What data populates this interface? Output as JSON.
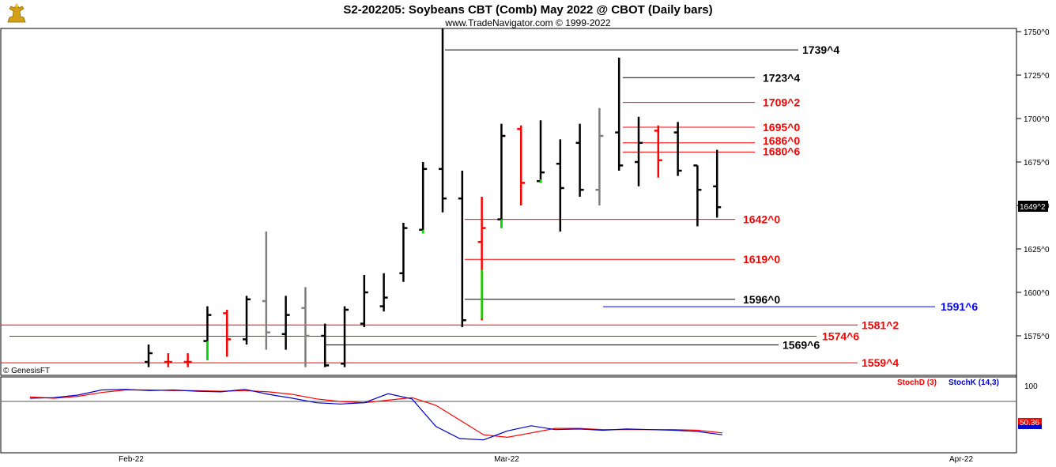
{
  "title": "S2-202205:  Soybeans CBT (Comb) May 2022 @ CBOT  (Daily bars)",
  "subtitle": "www.TradeNavigator.com © 1999-2022",
  "copyright": "© GenesisFT",
  "icon": "gold-trophy-logo-icon",
  "colors": {
    "up": "#000000",
    "down": "#ff0000",
    "neutral": "#808080",
    "stochK": "#0000cc",
    "stochD": "#ff0000",
    "highlight": "#0000ff"
  },
  "price_labels": [
    "1750^0",
    "1725^0",
    "1700^0",
    "1675^0",
    "1650^0",
    "1625^0",
    "1600^0",
    "1575^0"
  ],
  "last_price": "1649^2",
  "date_labels": [
    "Feb-22",
    "Mar-22",
    "Apr-22"
  ],
  "indicator": {
    "d_label": "StochD (3)",
    "k_label": "StochK (14,3)",
    "level_label": "100",
    "value_label": "50.36"
  },
  "chart_data": {
    "type": "ohlc",
    "title": "S2-202205:  Soybeans CBT (Comb) May 2022 @ CBOT  (Daily bars)",
    "ylim": [
      1557,
      1752
    ],
    "levels": [
      {
        "label": "1739^4",
        "value": 1739.5,
        "color": "#000000"
      },
      {
        "label": "1723^4",
        "value": 1723.5,
        "color": "#000000"
      },
      {
        "label": "1709^2",
        "value": 1709.25,
        "color": "#ff0000"
      },
      {
        "label": "1695^0",
        "value": 1695,
        "color": "#ff0000"
      },
      {
        "label": "1686^0",
        "value": 1686,
        "color": "#ff0000"
      },
      {
        "label": "1680^6",
        "value": 1680.75,
        "color": "#ff0000"
      },
      {
        "label": "1642^0",
        "value": 1642,
        "color": "#ff0000"
      },
      {
        "label": "1619^0",
        "value": 1619,
        "color": "#ff0000"
      },
      {
        "label": "1596^0",
        "value": 1596,
        "color": "#000000"
      },
      {
        "label": "1591^6",
        "value": 1591.75,
        "color": "#0000ff"
      },
      {
        "label": "1581^2",
        "value": 1581.25,
        "color": "#ff0000"
      },
      {
        "label": "1574^6",
        "value": 1574.75,
        "color": "#ff0000"
      },
      {
        "label": "1569^6",
        "value": 1569.75,
        "color": "#000000"
      },
      {
        "label": "1559^4",
        "value": 1559.5,
        "color": "#ff0000"
      }
    ],
    "bars": [
      {
        "o": 1560,
        "h": 1570,
        "l": 1557,
        "c": 1565,
        "color": "#000000"
      },
      {
        "o": 1560,
        "h": 1565,
        "l": 1557,
        "c": 1560,
        "color": "#ff0000"
      },
      {
        "o": 1560,
        "h": 1565,
        "l": 1557,
        "c": 1560,
        "color": "#ff0000"
      },
      {
        "o": 1572,
        "h": 1592,
        "l": 1561,
        "c": 1587,
        "color": "#000000"
      },
      {
        "o": 1588,
        "h": 1590,
        "l": 1563,
        "c": 1573,
        "color": "#ff0000"
      },
      {
        "o": 1573,
        "h": 1598,
        "l": 1570,
        "c": 1596,
        "color": "#000000"
      },
      {
        "o": 1595,
        "h": 1635,
        "l": 1567,
        "c": 1577,
        "color": "#808080"
      },
      {
        "o": 1576,
        "h": 1598,
        "l": 1567,
        "c": 1587,
        "color": "#000000"
      },
      {
        "o": 1591,
        "h": 1603,
        "l": 1557,
        "c": 1575,
        "color": "#808080"
      },
      {
        "o": 1575,
        "h": 1582,
        "l": 1557,
        "c": 1558,
        "color": "#000000"
      },
      {
        "o": 1559,
        "h": 1592,
        "l": 1557,
        "c": 1590,
        "color": "#000000"
      },
      {
        "o": 1582,
        "h": 1610,
        "l": 1580,
        "c": 1600,
        "color": "#000000"
      },
      {
        "o": 1592,
        "h": 1611,
        "l": 1589,
        "c": 1597,
        "color": "#000000"
      },
      {
        "o": 1611,
        "h": 1640,
        "l": 1606,
        "c": 1637,
        "color": "#000000"
      },
      {
        "o": 1636,
        "h": 1675,
        "l": 1634,
        "c": 1671,
        "color": "#000000"
      },
      {
        "o": 1671,
        "h": 1752,
        "l": 1646,
        "c": 1654,
        "color": "#000000"
      },
      {
        "o": 1654,
        "h": 1670,
        "l": 1580,
        "c": 1584,
        "color": "#000000"
      },
      {
        "o": 1629,
        "h": 1655,
        "l": 1584,
        "c": 1637,
        "color": "#ff0000"
      },
      {
        "o": 1642,
        "h": 1697,
        "l": 1637,
        "c": 1690,
        "color": "#000000"
      },
      {
        "o": 1694,
        "h": 1696,
        "l": 1650,
        "c": 1663,
        "color": "#ff0000"
      },
      {
        "o": 1664,
        "h": 1699,
        "l": 1663,
        "c": 1669,
        "color": "#000000"
      },
      {
        "o": 1674,
        "h": 1688,
        "l": 1635,
        "c": 1660,
        "color": "#000000"
      },
      {
        "o": 1686,
        "h": 1697,
        "l": 1655,
        "c": 1659,
        "color": "#000000"
      },
      {
        "o": 1659,
        "h": 1706,
        "l": 1650,
        "c": 1690,
        "color": "#808080"
      },
      {
        "o": 1692,
        "h": 1735,
        "l": 1670,
        "c": 1673,
        "color": "#000000"
      },
      {
        "o": 1675,
        "h": 1701,
        "l": 1661,
        "c": 1686,
        "color": "#000000"
      },
      {
        "o": 1693,
        "h": 1696,
        "l": 1666,
        "c": 1676,
        "color": "#ff0000"
      },
      {
        "o": 1692,
        "h": 1698,
        "l": 1667,
        "c": 1670,
        "color": "#000000"
      },
      {
        "o": 1673,
        "h": 1673,
        "l": 1638,
        "c": 1659,
        "color": "#000000"
      },
      {
        "o": 1661,
        "h": 1682,
        "l": 1643,
        "c": 1649,
        "color": "#000000"
      }
    ],
    "stochK": [
      79,
      80,
      84,
      92,
      93,
      91,
      92,
      90,
      89,
      93,
      85,
      79,
      72,
      70,
      72,
      86,
      78,
      35,
      16,
      14,
      28,
      36,
      30,
      31,
      29,
      31,
      30,
      29,
      27,
      22
    ],
    "stochD": [
      81,
      79,
      82,
      88,
      92,
      92,
      91,
      91,
      90,
      91,
      89,
      85,
      78,
      74,
      72,
      76,
      80,
      68,
      45,
      22,
      18,
      25,
      32,
      32,
      30,
      30,
      30,
      30,
      29,
      25
    ]
  }
}
